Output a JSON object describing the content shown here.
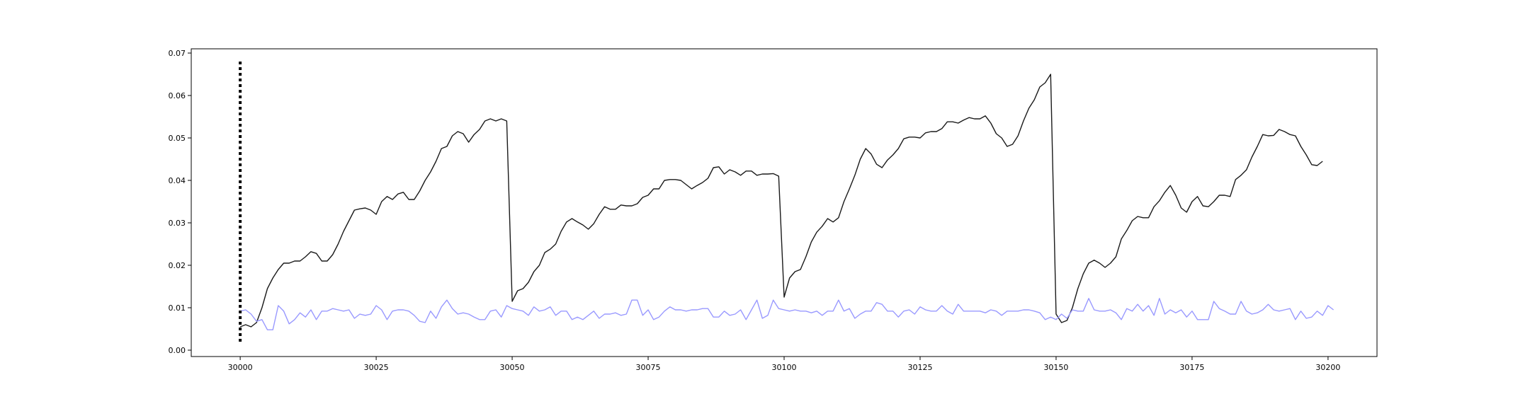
{
  "chart_data": {
    "type": "line",
    "title": "",
    "xlabel": "",
    "ylabel": "",
    "xlim": [
      29991,
      30209
    ],
    "ylim": [
      -0.0015,
      0.071
    ],
    "x_ticks": [
      30000,
      30025,
      30050,
      30075,
      30100,
      30125,
      30150,
      30175,
      30200
    ],
    "y_ticks": [
      0.0,
      0.01,
      0.02,
      0.03,
      0.04,
      0.05,
      0.06,
      0.07
    ],
    "x_tick_labels": [
      "30000",
      "30025",
      "30050",
      "30075",
      "30100",
      "30125",
      "30150",
      "30175",
      "30200"
    ],
    "y_tick_labels": [
      "0.00",
      "0.01",
      "0.02",
      "0.03",
      "0.04",
      "0.05",
      "0.06",
      "0.07"
    ],
    "grid": false,
    "vline": {
      "x": 30000,
      "y_range": [
        0.002,
        0.068
      ],
      "style": "dotted",
      "color": "#000000"
    },
    "series": [
      {
        "color": "#1a1a1a",
        "x_start": 30000,
        "values": [
          0.0055,
          0.006,
          0.0055,
          0.0065,
          0.01,
          0.0145,
          0.017,
          0.019,
          0.0205,
          0.0205,
          0.021,
          0.021,
          0.022,
          0.0232,
          0.0228,
          0.021,
          0.021,
          0.0225,
          0.025,
          0.028,
          0.0305,
          0.033,
          0.0333,
          0.0335,
          0.033,
          0.032,
          0.035,
          0.0362,
          0.0355,
          0.0368,
          0.0372,
          0.0355,
          0.0355,
          0.0375,
          0.04,
          0.042,
          0.0445,
          0.0475,
          0.048,
          0.0505,
          0.0515,
          0.051,
          0.049,
          0.0508,
          0.052,
          0.054,
          0.0545,
          0.054,
          0.0545,
          0.054,
          0.0115,
          0.014,
          0.0145,
          0.016,
          0.0185,
          0.02,
          0.023,
          0.0238,
          0.025,
          0.028,
          0.0302,
          0.031,
          0.0302,
          0.0295,
          0.0285,
          0.0298,
          0.032,
          0.0338,
          0.0332,
          0.0332,
          0.0342,
          0.034,
          0.034,
          0.0345,
          0.036,
          0.0365,
          0.038,
          0.038,
          0.04,
          0.0402,
          0.0402,
          0.04,
          0.039,
          0.038,
          0.0388,
          0.0395,
          0.0405,
          0.043,
          0.0432,
          0.0415,
          0.0425,
          0.042,
          0.0412,
          0.0422,
          0.0422,
          0.0412,
          0.0415,
          0.0415,
          0.0416,
          0.041,
          0.0125,
          0.017,
          0.0185,
          0.019,
          0.022,
          0.0255,
          0.0278,
          0.0292,
          0.031,
          0.0302,
          0.0312,
          0.035,
          0.038,
          0.0412,
          0.045,
          0.0475,
          0.0462,
          0.0438,
          0.043,
          0.0448,
          0.046,
          0.0475,
          0.0498,
          0.0502,
          0.0502,
          0.05,
          0.0512,
          0.0515,
          0.0515,
          0.0522,
          0.0538,
          0.0538,
          0.0535,
          0.0542,
          0.0548,
          0.0545,
          0.0545,
          0.0552,
          0.0535,
          0.051,
          0.05,
          0.048,
          0.0485,
          0.0505,
          0.054,
          0.057,
          0.059,
          0.062,
          0.063,
          0.065,
          0.0085,
          0.0065,
          0.007,
          0.01,
          0.0145,
          0.018,
          0.0205,
          0.0212,
          0.0205,
          0.0195,
          0.0205,
          0.022,
          0.0262,
          0.0282,
          0.0305,
          0.0315,
          0.0312,
          0.0312,
          0.0338,
          0.0352,
          0.0372,
          0.0388,
          0.0365,
          0.0335,
          0.0325,
          0.035,
          0.0362,
          0.034,
          0.0338,
          0.035,
          0.0365,
          0.0365,
          0.0362,
          0.0402,
          0.0412,
          0.0425,
          0.0455,
          0.048,
          0.0508,
          0.0505,
          0.0506,
          0.052,
          0.0515,
          0.0508,
          0.0505,
          0.048,
          0.046,
          0.0437,
          0.0435,
          0.0445
        ]
      },
      {
        "color": "#9999ff",
        "x_start": 30000,
        "values": [
          0.0092,
          0.0095,
          0.0085,
          0.0068,
          0.0072,
          0.0048,
          0.0048,
          0.0105,
          0.0092,
          0.0062,
          0.0072,
          0.0088,
          0.0078,
          0.0095,
          0.0072,
          0.0092,
          0.0092,
          0.0098,
          0.0095,
          0.0092,
          0.0095,
          0.0075,
          0.0085,
          0.0082,
          0.0085,
          0.0105,
          0.0095,
          0.0072,
          0.0092,
          0.0095,
          0.0095,
          0.0092,
          0.0082,
          0.0068,
          0.0065,
          0.0092,
          0.0075,
          0.0102,
          0.0118,
          0.0098,
          0.0085,
          0.0088,
          0.0085,
          0.0078,
          0.0072,
          0.0072,
          0.0092,
          0.0095,
          0.0078,
          0.0105,
          0.0098,
          0.0095,
          0.0092,
          0.0082,
          0.0102,
          0.0092,
          0.0095,
          0.0102,
          0.0082,
          0.0092,
          0.0092,
          0.0072,
          0.0078,
          0.0072,
          0.0082,
          0.0092,
          0.0075,
          0.0085,
          0.0085,
          0.0088,
          0.0082,
          0.0085,
          0.0118,
          0.0118,
          0.0082,
          0.0095,
          0.0072,
          0.0078,
          0.0092,
          0.0102,
          0.0095,
          0.0095,
          0.0092,
          0.0095,
          0.0095,
          0.0098,
          0.0098,
          0.0078,
          0.0078,
          0.0092,
          0.0082,
          0.0085,
          0.0095,
          0.0072,
          0.0095,
          0.0118,
          0.0075,
          0.0082,
          0.0118,
          0.0098,
          0.0095,
          0.0092,
          0.0095,
          0.0092,
          0.0092,
          0.0088,
          0.0092,
          0.0082,
          0.0092,
          0.0092,
          0.0118,
          0.0092,
          0.0098,
          0.0075,
          0.0085,
          0.0092,
          0.0092,
          0.0112,
          0.0108,
          0.0092,
          0.0092,
          0.0078,
          0.0092,
          0.0095,
          0.0085,
          0.0102,
          0.0095,
          0.0092,
          0.0092,
          0.0105,
          0.0092,
          0.0085,
          0.0108,
          0.0092,
          0.0092,
          0.0092,
          0.0092,
          0.0088,
          0.0095,
          0.0092,
          0.0082,
          0.0092,
          0.0092,
          0.0092,
          0.0095,
          0.0095,
          0.0092,
          0.0088,
          0.0072,
          0.0078,
          0.0072,
          0.0085,
          0.0075,
          0.0095,
          0.0092,
          0.0092,
          0.0122,
          0.0095,
          0.0092,
          0.0092,
          0.0095,
          0.0088,
          0.0072,
          0.0098,
          0.0092,
          0.0108,
          0.0092,
          0.0105,
          0.0082,
          0.0122,
          0.0085,
          0.0095,
          0.0088,
          0.0095,
          0.0078,
          0.0092,
          0.0072,
          0.0072,
          0.0072,
          0.0115,
          0.0098,
          0.0092,
          0.0085,
          0.0085,
          0.0115,
          0.0092,
          0.0085,
          0.0088,
          0.0095,
          0.0108,
          0.0095,
          0.0092,
          0.0095,
          0.0098,
          0.0072,
          0.0092,
          0.0075,
          0.0078,
          0.0092,
          0.0082,
          0.0105,
          0.0095
        ]
      }
    ]
  }
}
